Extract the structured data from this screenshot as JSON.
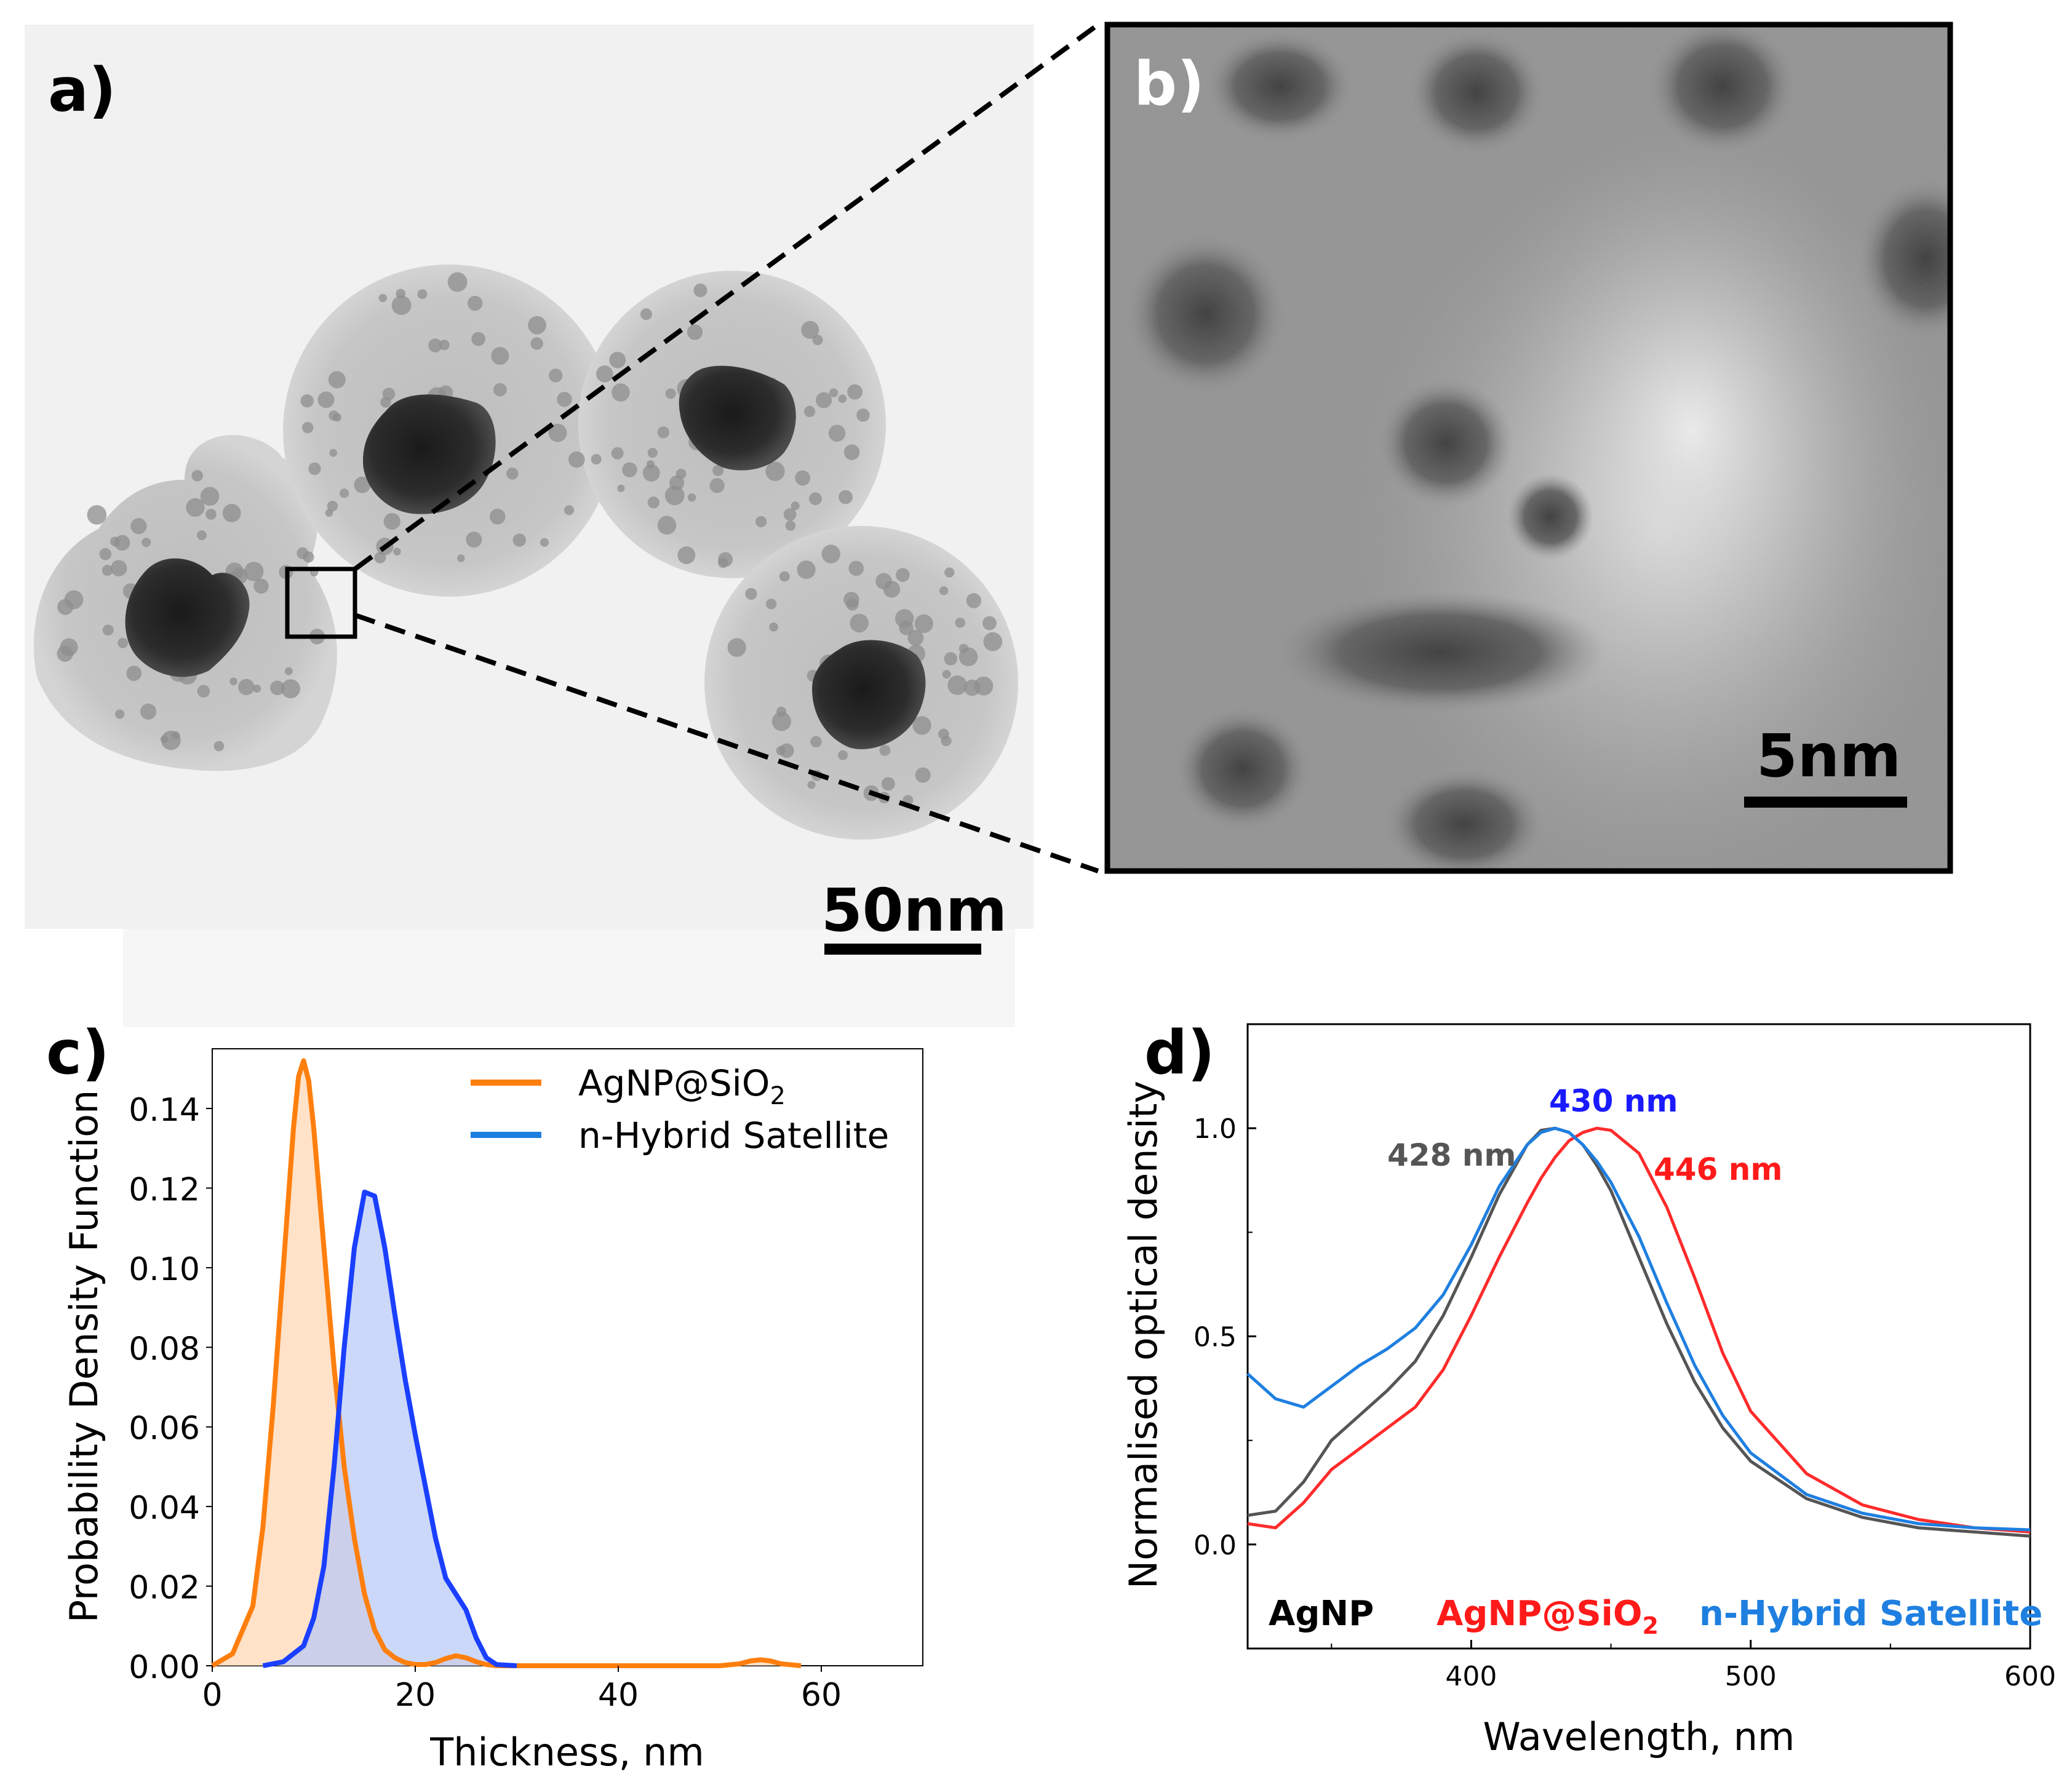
{
  "panels": {
    "a": {
      "label": "a)",
      "scale_bar": "50nm"
    },
    "b": {
      "label": "b)",
      "scale_bar": "5nm"
    },
    "c": {
      "label": "c)"
    },
    "d": {
      "label": "d)"
    }
  },
  "chart_data": [
    {
      "panel": "c",
      "type": "area",
      "title": "",
      "xlabel": "Thickness, nm",
      "ylabel": "Probability Density Function",
      "xlim": [
        0,
        70
      ],
      "ylim": [
        0,
        0.155
      ],
      "xticks": [
        0,
        20,
        40,
        60
      ],
      "yticks": [
        0.0,
        0.02,
        0.04,
        0.06,
        0.08,
        0.1,
        0.12,
        0.14
      ],
      "ytick_labels": [
        "0.00",
        "0.02",
        "0.04",
        "0.06",
        "0.08",
        "0.10",
        "0.12",
        "0.14"
      ],
      "legend": {
        "placement": "top-right",
        "entries": [
          {
            "text": "AgNP@SiO",
            "sub": "2"
          },
          {
            "text": "n-Hybrid Satellite"
          }
        ]
      },
      "series": [
        {
          "name": "AgNP@SiO2",
          "color": "#ff7f0e",
          "fill": "#ffd5b0",
          "x": [
            0,
            2,
            4,
            5,
            6,
            7,
            8,
            8.5,
            9,
            9.5,
            10,
            11,
            12,
            13,
            14,
            15,
            16,
            17,
            18,
            19,
            20,
            21,
            22,
            23,
            24,
            25,
            26,
            27,
            28,
            30,
            40,
            50,
            52,
            53,
            54,
            55,
            56,
            58
          ],
          "values": [
            0.0,
            0.003,
            0.015,
            0.035,
            0.065,
            0.1,
            0.135,
            0.148,
            0.152,
            0.147,
            0.135,
            0.105,
            0.075,
            0.05,
            0.032,
            0.018,
            0.009,
            0.004,
            0.002,
            0.0008,
            0.0003,
            0.0003,
            0.0008,
            0.0018,
            0.0025,
            0.002,
            0.001,
            0.0003,
            0.0,
            0.0,
            0.0,
            0.0,
            0.0005,
            0.0012,
            0.0015,
            0.0012,
            0.0005,
            0.0
          ]
        },
        {
          "name": "n-Hybrid Satellite",
          "color": "#1a3fff",
          "fill": "#b7c7f6",
          "x": [
            5,
            7,
            9,
            10,
            11,
            12,
            13,
            14,
            15,
            16,
            17,
            18,
            19,
            20,
            21,
            22,
            23,
            24,
            25,
            26,
            27,
            28,
            30
          ],
          "values": [
            0.0,
            0.001,
            0.005,
            0.012,
            0.025,
            0.05,
            0.08,
            0.105,
            0.119,
            0.118,
            0.105,
            0.088,
            0.072,
            0.058,
            0.045,
            0.032,
            0.022,
            0.018,
            0.014,
            0.007,
            0.002,
            0.0003,
            0.0
          ]
        }
      ]
    },
    {
      "panel": "d",
      "type": "line",
      "title": "",
      "xlabel": "Wavelength, nm",
      "ylabel": "Normalised optical density",
      "xlim": [
        320,
        600
      ],
      "ylim": [
        -0.25,
        1.25
      ],
      "xticks": [
        400,
        500,
        600
      ],
      "yticks": [
        0.0,
        0.5,
        1.0
      ],
      "ytick_labels": [
        "0.0",
        "0.5",
        "1.0"
      ],
      "x": [
        320,
        330,
        340,
        350,
        360,
        370,
        380,
        390,
        400,
        410,
        420,
        425,
        430,
        435,
        440,
        445,
        450,
        460,
        470,
        480,
        490,
        500,
        520,
        540,
        560,
        580,
        600
      ],
      "series": [
        {
          "name": "AgNP",
          "color": "#555555",
          "values": [
            0.07,
            0.08,
            0.15,
            0.25,
            0.31,
            0.37,
            0.44,
            0.55,
            0.69,
            0.84,
            0.96,
            0.995,
            1.0,
            0.99,
            0.96,
            0.91,
            0.85,
            0.69,
            0.53,
            0.39,
            0.28,
            0.2,
            0.11,
            0.065,
            0.04,
            0.03,
            0.02
          ]
        },
        {
          "name": "AgNP@SiO2",
          "color": "#ff2b2b",
          "values": [
            0.05,
            0.04,
            0.1,
            0.18,
            0.23,
            0.28,
            0.33,
            0.42,
            0.55,
            0.69,
            0.82,
            0.88,
            0.93,
            0.97,
            0.99,
            1.0,
            0.995,
            0.94,
            0.81,
            0.64,
            0.46,
            0.32,
            0.17,
            0.095,
            0.06,
            0.04,
            0.03
          ]
        },
        {
          "name": "n-Hybrid Satellite",
          "color": "#1e7fe0",
          "values": [
            0.41,
            0.35,
            0.33,
            0.38,
            0.43,
            0.47,
            0.52,
            0.6,
            0.72,
            0.86,
            0.96,
            0.99,
            1.0,
            0.99,
            0.96,
            0.92,
            0.87,
            0.74,
            0.58,
            0.43,
            0.31,
            0.22,
            0.12,
            0.075,
            0.05,
            0.04,
            0.035
          ]
        }
      ],
      "annotations": [
        {
          "text": "428 nm",
          "color": "#555555"
        },
        {
          "text": "430 nm",
          "color": "#1a1aff"
        },
        {
          "text": "446 nm",
          "color": "#ff1a1a"
        }
      ],
      "series_labels": [
        {
          "text": "AgNP",
          "color": "#000000"
        },
        {
          "text": "AgNP@SiO",
          "sub": "2",
          "color": "#ff1a1a"
        },
        {
          "text": "n-Hybrid Satellite",
          "color": "#1e7fe0"
        }
      ]
    }
  ]
}
